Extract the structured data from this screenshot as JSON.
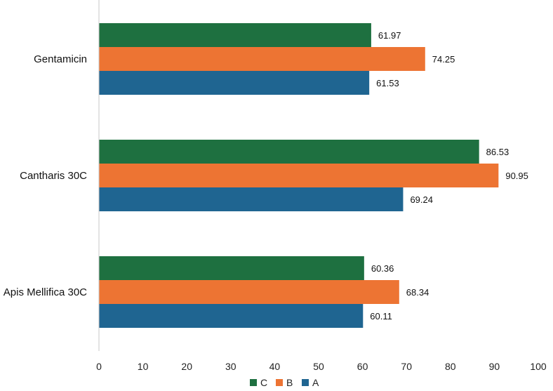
{
  "chart_data": {
    "type": "bar",
    "orientation": "horizontal",
    "title": "",
    "xlabel": "",
    "ylabel": "",
    "xlim": [
      0,
      100
    ],
    "x_ticks": [
      0,
      10,
      20,
      30,
      40,
      50,
      60,
      70,
      80,
      90,
      100
    ],
    "categories": [
      "Gentamicin",
      "Cantharis 30C",
      "Apis Mellifica 30C"
    ],
    "series": [
      {
        "name": "C",
        "color": "#1e7040",
        "values": [
          61.97,
          86.53,
          60.36
        ]
      },
      {
        "name": "B",
        "color": "#ed7433",
        "values": [
          74.25,
          90.95,
          68.34
        ]
      },
      {
        "name": "A",
        "color": "#1f6591",
        "values": [
          61.53,
          69.24,
          60.11
        ]
      }
    ],
    "legend": {
      "position": "bottom",
      "order": [
        "C",
        "B",
        "A"
      ]
    },
    "grid": false
  }
}
